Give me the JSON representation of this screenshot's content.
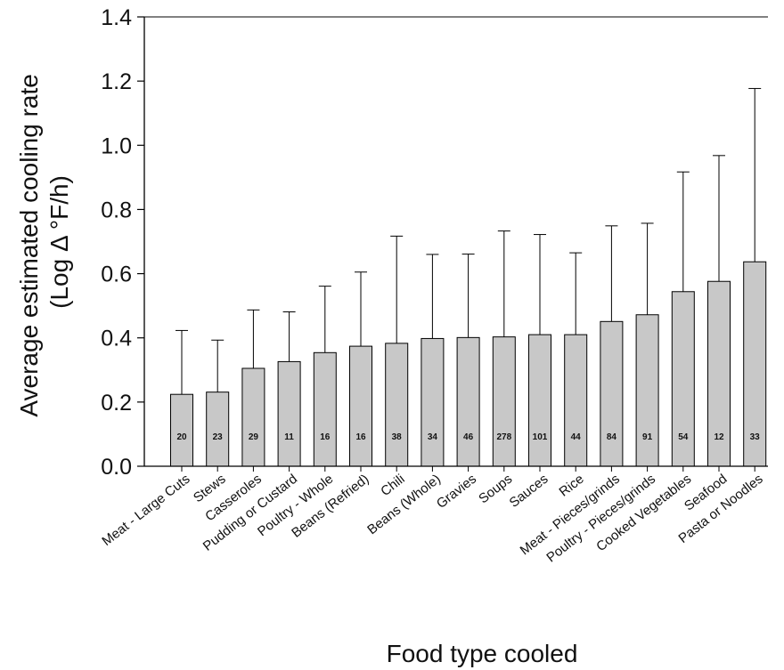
{
  "chart_data": {
    "type": "bar",
    "title": "",
    "xlabel": "Food type cooled",
    "ylabel_line1": "Average estimated cooling rate",
    "ylabel_line2": "(Log Δ °F/h)",
    "ylim": [
      0,
      1.4
    ],
    "yticks": [
      "0.0",
      "0.2",
      "0.4",
      "0.6",
      "0.8",
      "1.0",
      "1.2",
      "1.4"
    ],
    "error_bars": "upper",
    "grid": false,
    "colors": {
      "bar_fill": "#c8c8c8",
      "bar_stroke": "#000000",
      "axis": "#000000"
    },
    "categories": [
      "Meat - Large Cuts",
      "Stews",
      "Casseroles",
      "Pudding or Custard",
      "Poultry - Whole",
      "Beans (Refried)",
      "Chili",
      "Beans (Whole)",
      "Gravies",
      "Soups",
      "Sauces",
      "Rice",
      "Meat - Pieces/grinds",
      "Poultry - Pieces/grinds",
      "Cooked Vegetables",
      "Seafood",
      "Pasta or Noodles"
    ],
    "values": [
      0.224,
      0.231,
      0.305,
      0.326,
      0.354,
      0.374,
      0.383,
      0.398,
      0.401,
      0.403,
      0.41,
      0.41,
      0.451,
      0.472,
      0.544,
      0.576,
      0.637
    ],
    "error_upper": [
      0.423,
      0.393,
      0.487,
      0.481,
      0.561,
      0.605,
      0.717,
      0.66,
      0.661,
      0.733,
      0.722,
      0.665,
      0.749,
      0.757,
      0.917,
      0.968,
      1.177
    ],
    "counts": [
      "20",
      "23",
      "29",
      "11",
      "16",
      "16",
      "38",
      "34",
      "46",
      "278",
      "101",
      "44",
      "84",
      "91",
      "54",
      "12",
      "33"
    ]
  }
}
